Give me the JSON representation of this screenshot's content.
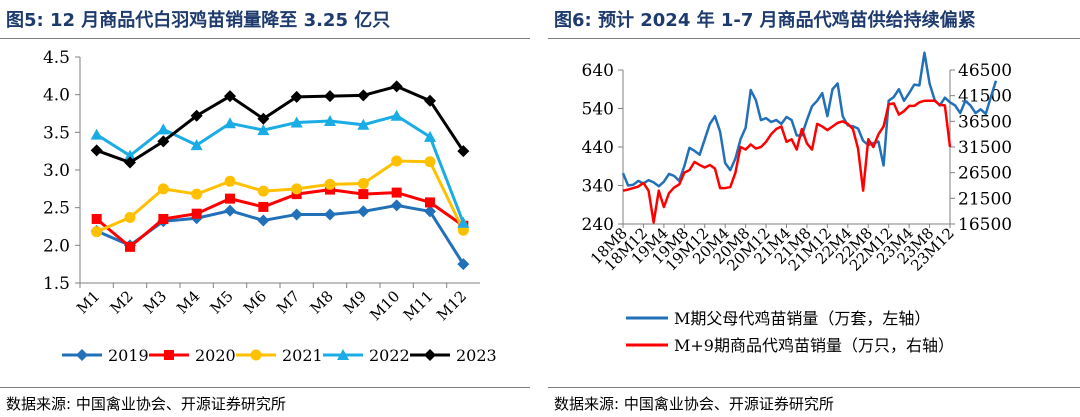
{
  "left": {
    "figure_title": "图5:  12 月商品代白羽鸡苗销量降至 3.25 亿只",
    "source": "数据来源:  中国禽业协会、开源证券研究所"
  },
  "right": {
    "figure_title": "图6:  预计 2024 年 1-7 月商品代鸡苗供给持续偏紧",
    "source": "数据来源:  中国禽业协会、开源证券研究所"
  },
  "chart_data": [
    {
      "type": "line",
      "title": "",
      "xlabel": "",
      "ylabel": "",
      "categories": [
        "M1",
        "M2",
        "M3",
        "M4",
        "M5",
        "M6",
        "M7",
        "M8",
        "M9",
        "M10",
        "M11",
        "M12"
      ],
      "ylim": [
        1.5,
        4.5
      ],
      "yticks": [
        "1.5",
        "2.0",
        "2.5",
        "3.0",
        "3.5",
        "4.0",
        "4.5"
      ],
      "grid": false,
      "legend": "bottom",
      "series": [
        {
          "name": "2019",
          "color": "#2270b8",
          "marker": "diamond",
          "values": [
            2.19,
            2.0,
            2.32,
            2.36,
            2.46,
            2.33,
            2.41,
            2.41,
            2.45,
            2.53,
            2.45,
            1.75
          ]
        },
        {
          "name": "2020",
          "color": "#ff0000",
          "marker": "square",
          "values": [
            2.35,
            1.98,
            2.35,
            2.42,
            2.62,
            2.51,
            2.68,
            2.74,
            2.68,
            2.7,
            2.57,
            2.26
          ]
        },
        {
          "name": "2021",
          "color": "#ffc000",
          "marker": "circle",
          "values": [
            2.18,
            2.37,
            2.75,
            2.68,
            2.85,
            2.72,
            2.75,
            2.81,
            2.82,
            3.12,
            3.11,
            2.2
          ]
        },
        {
          "name": "2022",
          "color": "#1aace5",
          "marker": "triangle",
          "values": [
            3.47,
            3.19,
            3.54,
            3.33,
            3.62,
            3.53,
            3.63,
            3.65,
            3.6,
            3.72,
            3.44,
            2.3
          ]
        },
        {
          "name": "2023",
          "color": "#000000",
          "marker": "diamond",
          "values": [
            3.26,
            3.1,
            3.38,
            3.72,
            3.98,
            3.68,
            3.97,
            3.98,
            3.99,
            4.11,
            3.92,
            3.25
          ]
        }
      ]
    },
    {
      "type": "line",
      "title": "",
      "xlabel": "",
      "ylabel": "",
      "x_start": "18M8",
      "x_end": "23M12",
      "x_tick_labels": [
        "18M8",
        "18M12",
        "19M4",
        "19M8",
        "19M12",
        "20M4",
        "20M8",
        "20M12",
        "21M4",
        "21M8",
        "21M12",
        "22M4",
        "22M8",
        "22M12",
        "23M4",
        "23M8",
        "23M12"
      ],
      "y_left_lim": [
        240,
        640
      ],
      "y_left_ticks": [
        "240",
        "340",
        "440",
        "540",
        "640"
      ],
      "y_right_lim": [
        16500,
        46500
      ],
      "y_right_ticks": [
        "16500",
        "21500",
        "26500",
        "31500",
        "36500",
        "41500",
        "46500"
      ],
      "grid": false,
      "legend": "bottom",
      "series": [
        {
          "name": "M期父母代鸡苗销量（万套，左轴）",
          "axis": "left",
          "color": "#2270b8",
          "values": [
            372,
            340,
            342,
            352,
            345,
            354,
            348,
            338,
            350,
            370,
            365,
            352,
            390,
            438,
            430,
            420,
            460,
            500,
            520,
            480,
            398,
            380,
            410,
            460,
            490,
            588,
            562,
            510,
            515,
            505,
            510,
            500,
            518,
            510,
            470,
            470,
            510,
            546,
            560,
            580,
            520,
            590,
            605,
            520,
            496,
            494,
            488,
            456,
            445,
            450,
            454,
            392,
            560,
            570,
            590,
            560,
            580,
            602,
            600,
            685,
            605,
            562,
            548,
            568,
            556,
            548,
            528,
            560,
            548,
            528,
            538,
            526,
            570,
            612
          ]
        },
        {
          "name": "M+9期商品代鸡苗销量（万只，右轴）",
          "axis": "right",
          "color": "#ff0000",
          "values": [
            23000,
            23200,
            23500,
            23800,
            24500,
            23000,
            16800,
            23000,
            19800,
            22500,
            23600,
            24200,
            26500,
            27000,
            28600,
            28000,
            27500,
            28000,
            27300,
            23500,
            23500,
            23700,
            26500,
            31500,
            31000,
            32000,
            31200,
            31500,
            32500,
            34000,
            35000,
            35500,
            32500,
            33000,
            31000,
            35000,
            32200,
            31000,
            36000,
            35500,
            34800,
            35500,
            36200,
            36500,
            36000,
            35000,
            31200,
            23000,
            33000,
            31500,
            34000,
            35500,
            39800,
            40000,
            37800,
            38500,
            39500,
            39500,
            40200,
            40500,
            40500,
            40500,
            39700,
            39600,
            31500
          ]
        }
      ]
    }
  ]
}
